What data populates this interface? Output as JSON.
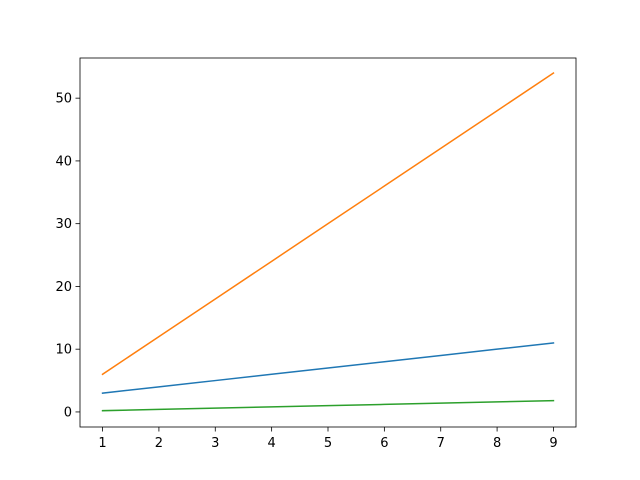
{
  "chart_data": {
    "type": "line",
    "title": "",
    "xlabel": "",
    "ylabel": "",
    "xlim": [
      0.6,
      9.4
    ],
    "ylim": [
      -2.4,
      56.4
    ],
    "xticks": [
      1,
      2,
      3,
      4,
      5,
      6,
      7,
      8,
      9
    ],
    "yticks": [
      0,
      10,
      20,
      30,
      40,
      50
    ],
    "grid": false,
    "legend": "none",
    "series": [
      {
        "color": "#1f77b4",
        "x": [
          1,
          2,
          3,
          4,
          5,
          6,
          7,
          8,
          9
        ],
        "y": [
          3,
          4,
          5,
          6,
          7,
          8,
          9,
          10,
          11
        ]
      },
      {
        "color": "#ff7f0e",
        "x": [
          1,
          2,
          3,
          4,
          5,
          6,
          7,
          8,
          9
        ],
        "y": [
          6,
          12,
          18,
          24,
          30,
          36,
          42,
          48,
          54
        ]
      },
      {
        "color": "#2ca02c",
        "x": [
          1,
          2,
          3,
          4,
          5,
          6,
          7,
          8,
          9
        ],
        "y": [
          0.2,
          0.4,
          0.6,
          0.8,
          1.0,
          1.2,
          1.4,
          1.6,
          1.8
        ]
      }
    ]
  }
}
